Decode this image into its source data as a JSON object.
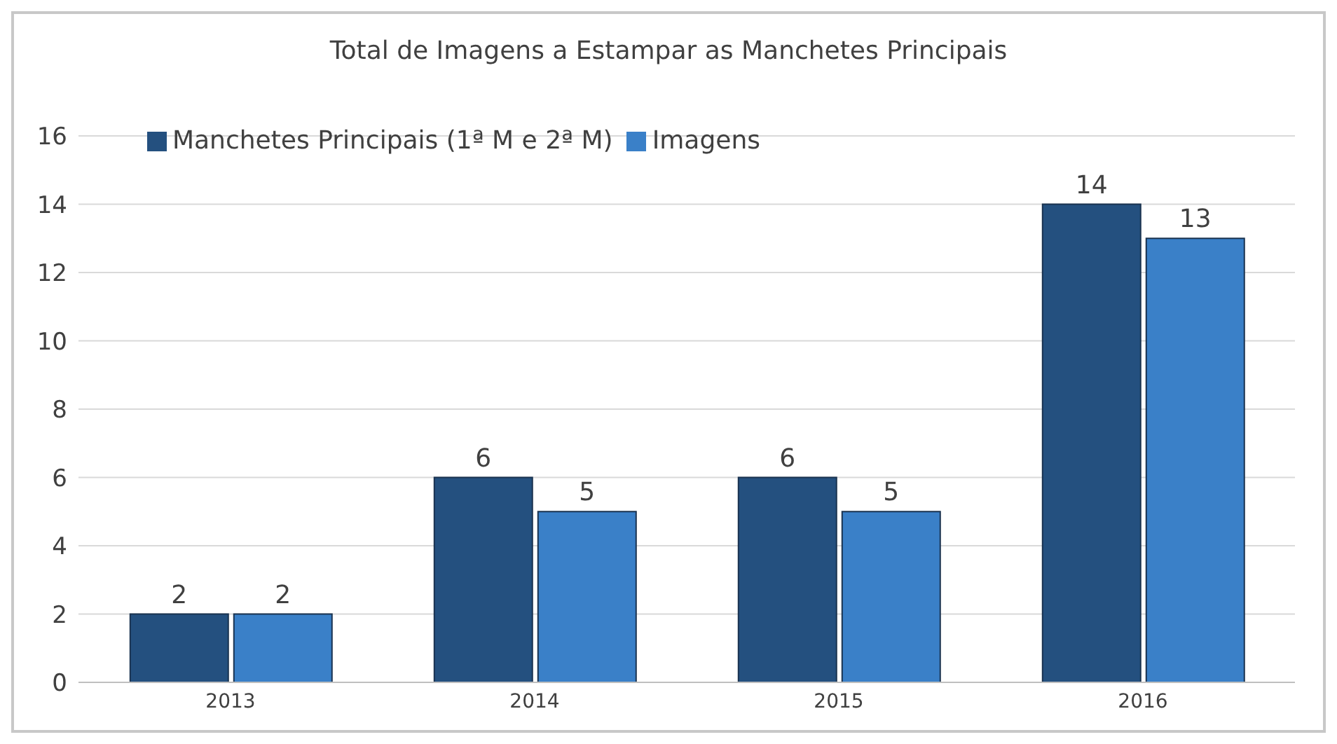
{
  "chart_data": {
    "type": "bar",
    "title": "Total de Imagens a Estampar as Manchetes Principais",
    "categories": [
      "2013",
      "2014",
      "2015",
      "2016"
    ],
    "series": [
      {
        "name": "Manchetes Principais (1ª M e 2ª M)",
        "color": "#24507f",
        "values": [
          2,
          6,
          6,
          14
        ]
      },
      {
        "name": "Imagens",
        "color": "#3a80c8",
        "values": [
          2,
          5,
          5,
          13
        ]
      }
    ],
    "ylim": [
      0,
      16
    ],
    "yticks": [
      0,
      2,
      4,
      6,
      8,
      10,
      12,
      14,
      16
    ],
    "grid": "y",
    "legend": "top left",
    "data_labels": true
  }
}
